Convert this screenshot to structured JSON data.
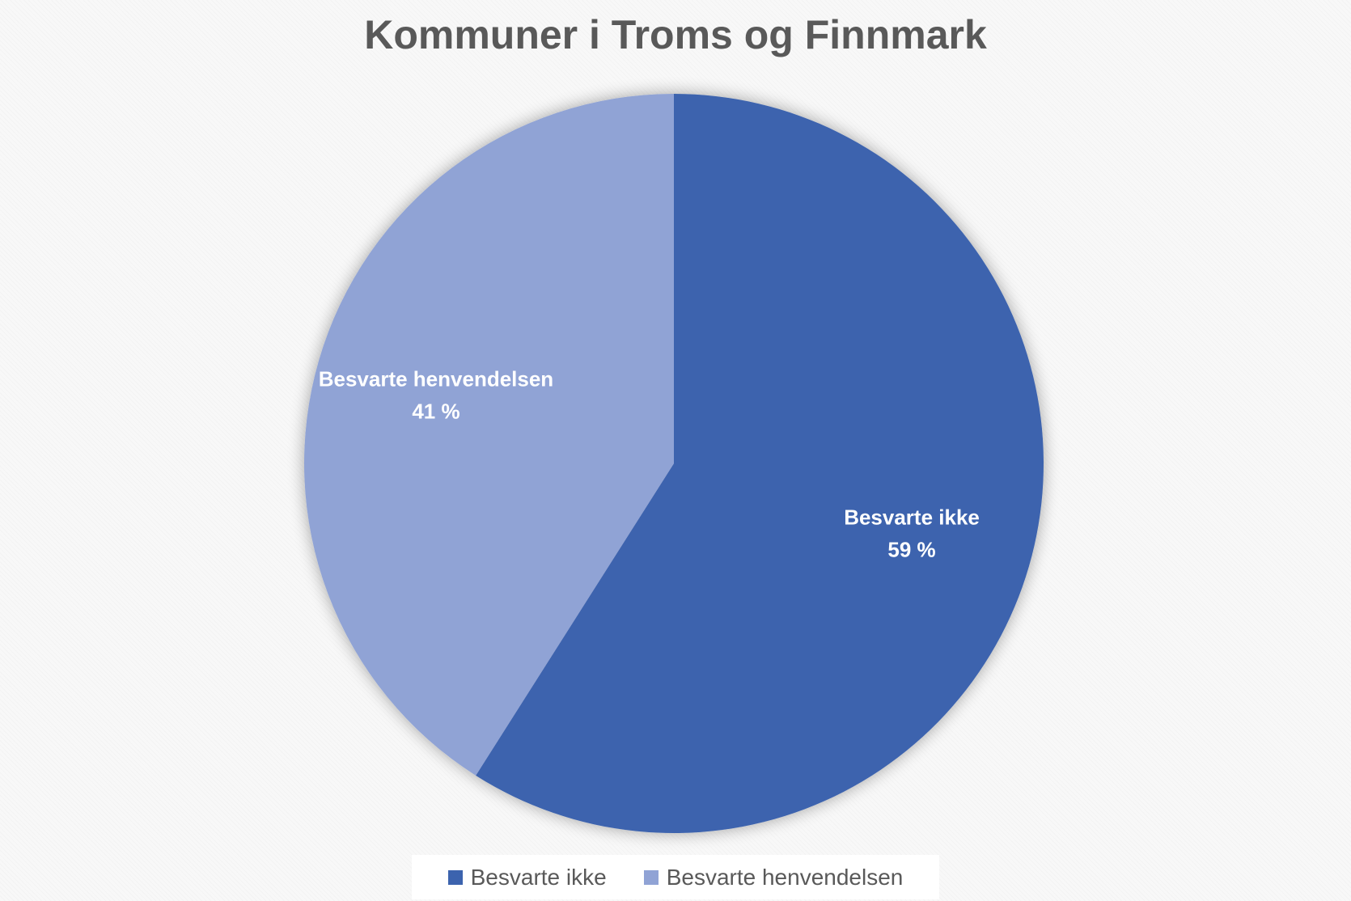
{
  "chart_data": {
    "type": "pie",
    "title": "Kommuner i Troms og Finnmark",
    "categories": [
      "Besvarte ikke",
      "Besvarte henvendelsen"
    ],
    "values": [
      59,
      41
    ],
    "value_labels": [
      "59 %",
      "41 %"
    ],
    "colors": [
      "#3c63ae",
      "#90a3d5"
    ],
    "start_angle": "top (12 o'clock), clockwise",
    "legend_position": "bottom",
    "data_labels": "inside slices (category name + percent)"
  }
}
